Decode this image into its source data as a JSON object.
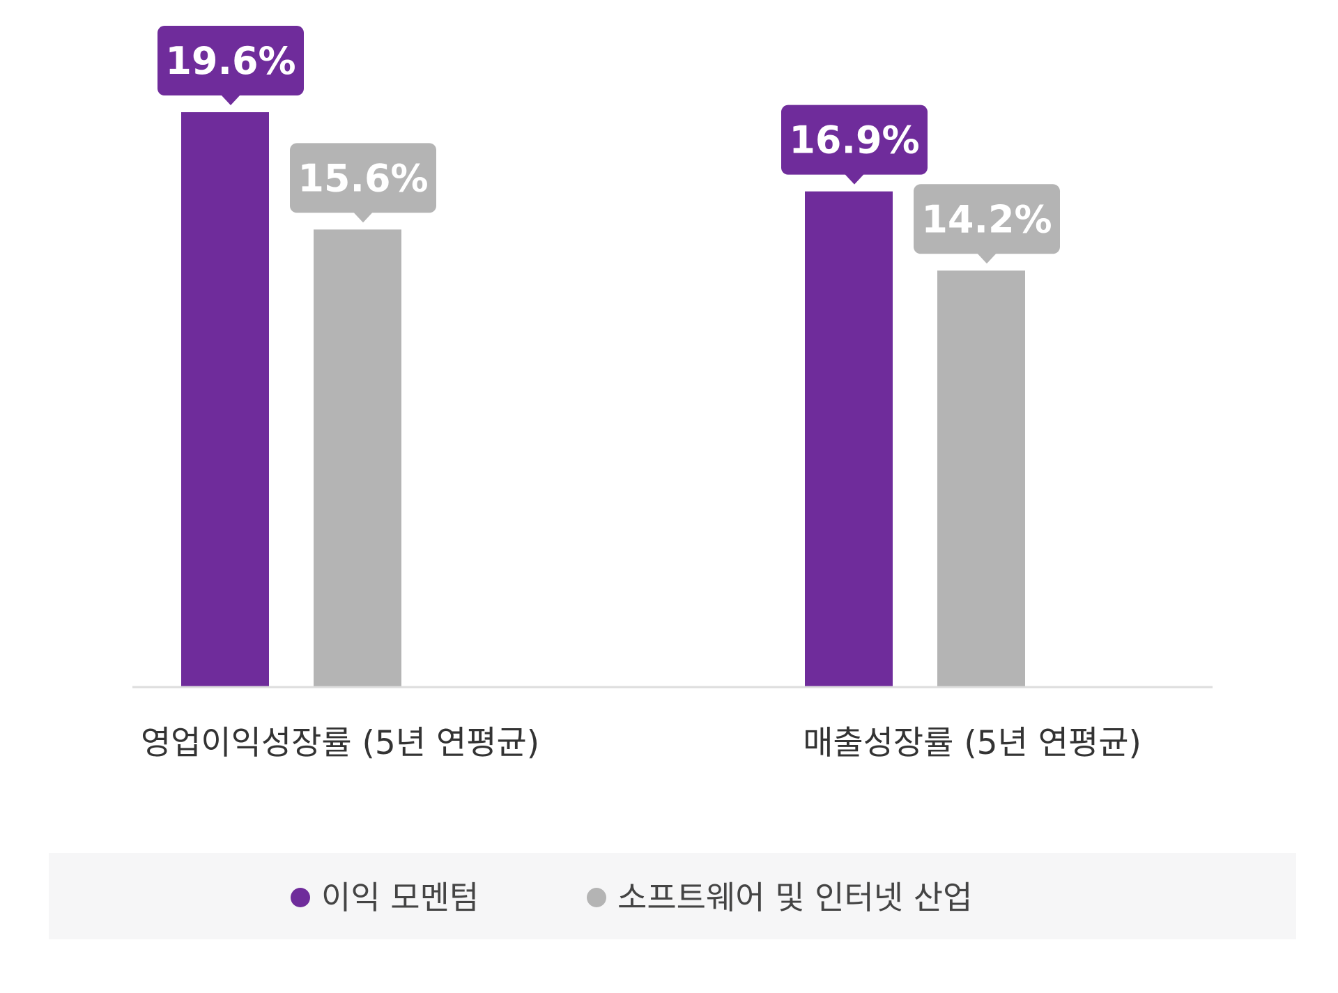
{
  "chart_data": {
    "type": "bar",
    "categories": [
      "영업이익성장률 (5년 연평균)",
      "매출성장률 (5년 연평균)"
    ],
    "series": [
      {
        "name": "이익 모멘텀",
        "values": [
          19.6,
          16.9
        ],
        "labels": [
          "19.6%",
          "16.9%"
        ],
        "color": "#6f2c9b"
      },
      {
        "name": "소프트웨어 및 인터넷 산업",
        "values": [
          15.6,
          14.2
        ],
        "labels": [
          "15.6%",
          "14.2%"
        ],
        "color": "#b4b4b4"
      }
    ],
    "ylim": [
      0,
      22
    ],
    "grid": false,
    "legend": {
      "placement": "bottom",
      "background": "#f6f6f7"
    },
    "colors": {
      "axis": "#dddddd",
      "category_text": "#333333",
      "legend_text": "#444444",
      "label_text": "#ffffff"
    }
  }
}
